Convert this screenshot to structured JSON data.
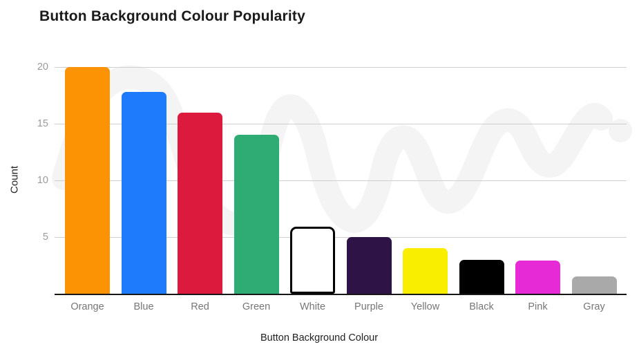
{
  "chart_data": {
    "type": "bar",
    "title": "Button Background Colour Popularity",
    "xlabel": "Button Background Colour",
    "ylabel": "Count",
    "categories": [
      "Orange",
      "Blue",
      "Red",
      "Green",
      "White",
      "Purple",
      "Yellow",
      "Black",
      "Pink",
      "Gray"
    ],
    "values": [
      20,
      17.8,
      16,
      14,
      5.9,
      5,
      4,
      3,
      2.9,
      1.5
    ],
    "bar_colors": [
      "#FC9304",
      "#1E7BFB",
      "#DC1A3D",
      "#2FAC74",
      "#FFFFFF",
      "#2E1347",
      "#FAEE00",
      "#000000",
      "#E62AD5",
      "#A9A9A9"
    ],
    "outlined_bar_index": 4,
    "outline_color": "#000000",
    "yticks": [
      5,
      10,
      15,
      20
    ],
    "ylim": [
      0,
      20
    ],
    "grid": true,
    "legend": false,
    "colors": {
      "gridline": "#cfcfcf",
      "axis_line": "#161616",
      "tick_label": "#9a9a9a",
      "category_label": "#767676",
      "watermark": "#f4f4f4"
    }
  }
}
